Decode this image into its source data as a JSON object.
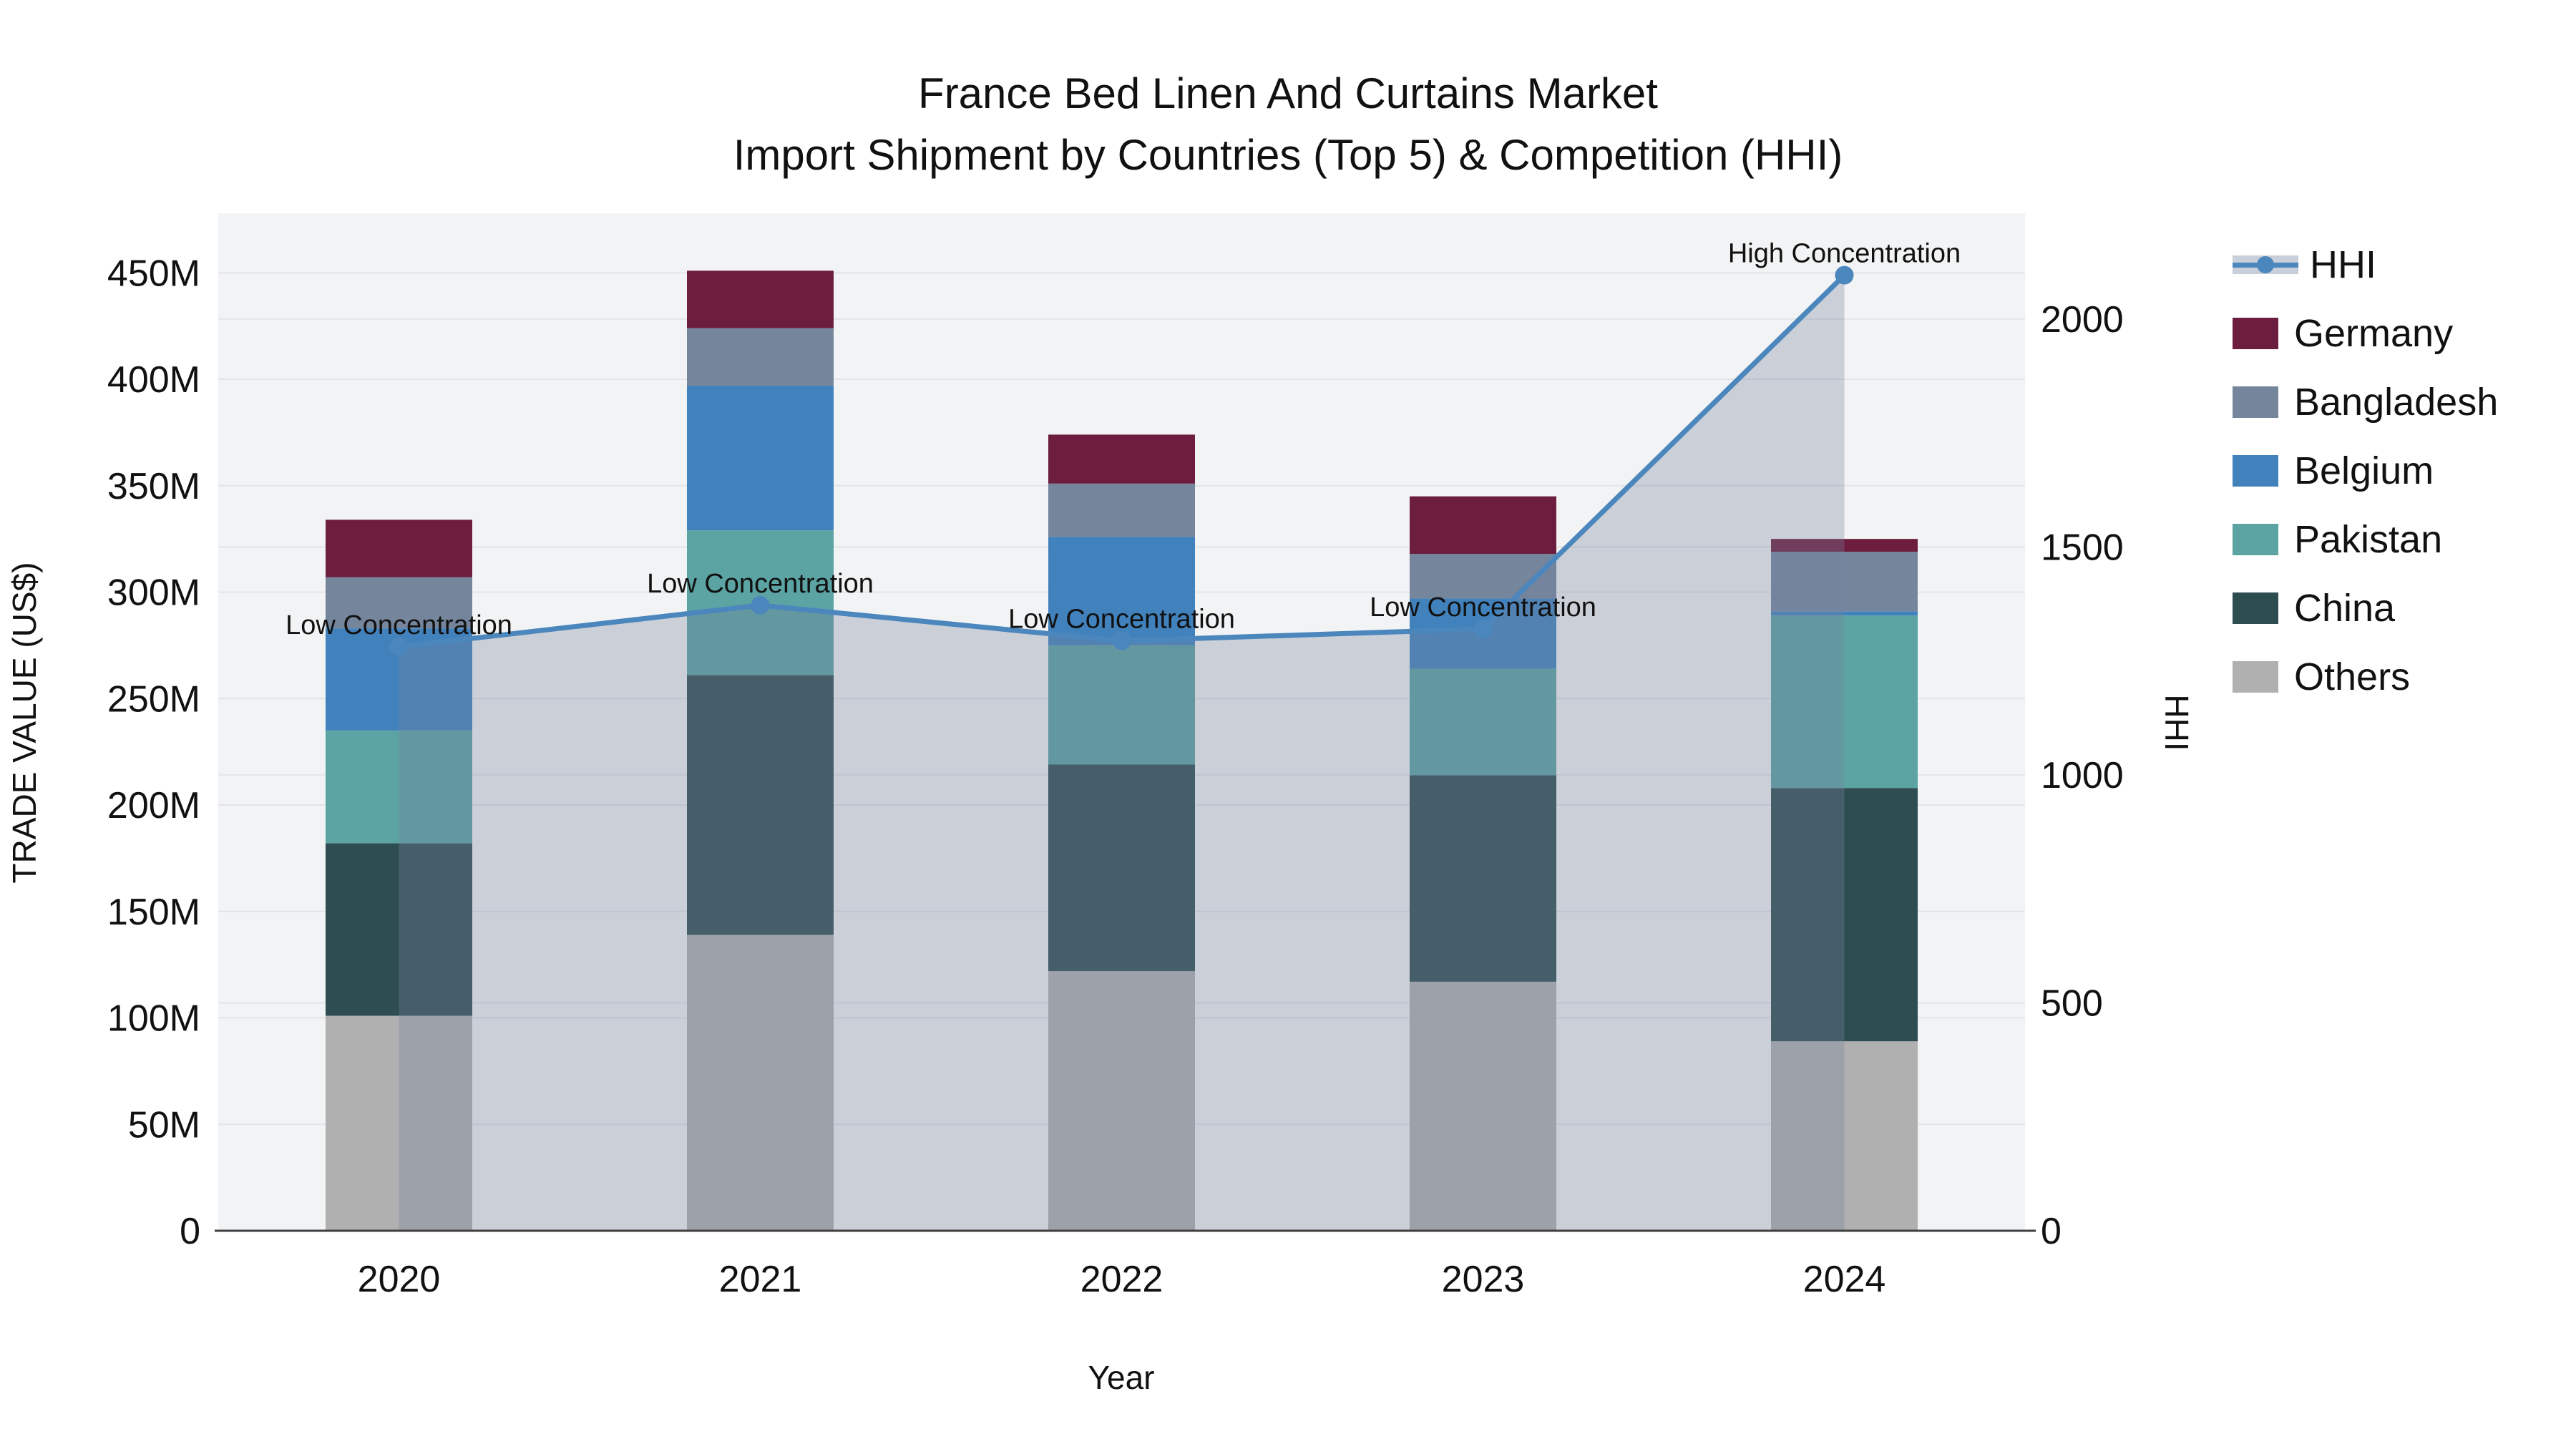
{
  "title": {
    "line1": "France Bed Linen And Curtains Market",
    "line2": "Import Shipment by Countries (Top 5) & Competition (HHI)"
  },
  "axes": {
    "left": {
      "title": "TRADE VALUE (US$)",
      "ticks": [
        {
          "label": "0",
          "value": 0
        },
        {
          "label": "50M",
          "value": 50
        },
        {
          "label": "100M",
          "value": 100
        },
        {
          "label": "150M",
          "value": 150
        },
        {
          "label": "200M",
          "value": 200
        },
        {
          "label": "250M",
          "value": 250
        },
        {
          "label": "300M",
          "value": 300
        },
        {
          "label": "350M",
          "value": 350
        },
        {
          "label": "400M",
          "value": 400
        },
        {
          "label": "450M",
          "value": 450
        }
      ],
      "max": 478
    },
    "right": {
      "title": "HHI",
      "ticks": [
        {
          "label": "0",
          "value": 0
        },
        {
          "label": "500",
          "value": 500
        },
        {
          "label": "1000",
          "value": 1000
        },
        {
          "label": "1500",
          "value": 1500
        },
        {
          "label": "2000",
          "value": 2000
        }
      ],
      "max": 2232
    },
    "x": {
      "title": "Year"
    }
  },
  "legend": {
    "items": [
      {
        "label": "HHI",
        "type": "line",
        "color": "#4b86bd",
        "band": "#c9cfda"
      },
      {
        "label": "Germany",
        "type": "swatch",
        "color": "#6d1d3e"
      },
      {
        "label": "Bangladesh",
        "type": "swatch",
        "color": "#74859c"
      },
      {
        "label": "Belgium",
        "type": "swatch",
        "color": "#4282bc"
      },
      {
        "label": "Pakistan",
        "type": "swatch",
        "color": "#5ca3a3"
      },
      {
        "label": "China",
        "type": "swatch",
        "color": "#2e4d50"
      },
      {
        "label": "Others",
        "type": "swatch",
        "color": "#b0b0b0"
      }
    ]
  },
  "chart_data": {
    "type": "bar",
    "bar_mode": "stacked",
    "title": "France Bed Linen And Curtains Market — Import Shipment by Countries (Top 5) & Competition (HHI)",
    "xlabel": "Year",
    "ylabel": "TRADE VALUE (US$)",
    "y2label": "HHI",
    "ylim": [
      0,
      478
    ],
    "y2lim": [
      0,
      2232
    ],
    "grid": true,
    "legend_position": "right",
    "categories": [
      "2020",
      "2021",
      "2022",
      "2023",
      "2024"
    ],
    "series": [
      {
        "name": "Others",
        "color": "#b0b0b0",
        "values": [
          101,
          139,
          122,
          117,
          89
        ]
      },
      {
        "name": "China",
        "color": "#2e4d50",
        "values": [
          81,
          122,
          97,
          97,
          119
        ]
      },
      {
        "name": "Pakistan",
        "color": "#5ca3a3",
        "values": [
          53,
          68,
          56,
          50,
          81
        ]
      },
      {
        "name": "Belgium",
        "color": "#4282bc",
        "values": [
          48,
          68,
          51,
          33,
          2
        ]
      },
      {
        "name": "Bangladesh",
        "color": "#74859c",
        "values": [
          24,
          27,
          25,
          21,
          28
        ]
      },
      {
        "name": "Germany",
        "color": "#6d1d3e",
        "values": [
          27,
          27,
          23,
          27,
          6
        ]
      }
    ],
    "bar_totals": [
      334,
      451,
      374,
      345,
      325
    ],
    "line_series": {
      "name": "HHI",
      "axis": "right",
      "color": "#4b86bd",
      "area_fill": "rgba(118,130,158,0.32)",
      "values": [
        1281,
        1372,
        1294,
        1320,
        2096
      ]
    },
    "annotations": [
      {
        "x": "2020",
        "text": "Low Concentration"
      },
      {
        "x": "2021",
        "text": "Low Concentration"
      },
      {
        "x": "2022",
        "text": "Low Concentration"
      },
      {
        "x": "2023",
        "text": "Low Concentration"
      },
      {
        "x": "2024",
        "text": "High Concentration"
      }
    ],
    "plot_bg": "#f2f3f4",
    "grid_color": "#e3e4e8",
    "axis_line_color": "#3f3f3f",
    "text_color": "#111111"
  }
}
